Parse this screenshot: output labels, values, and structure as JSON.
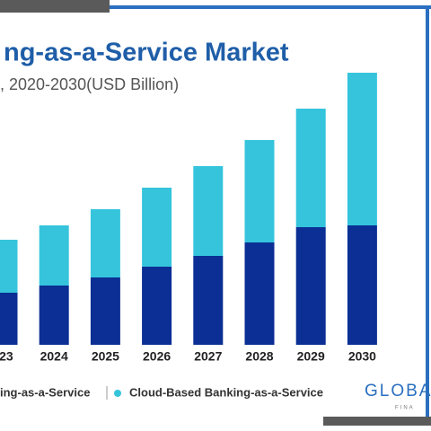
{
  "chart_data": {
    "type": "stacked-bar",
    "title": "ng-as-a-Service Market",
    "subtitle": ", 2020-2030(USD Billion)",
    "categories": [
      "023",
      "2024",
      "2025",
      "2026",
      "2027",
      "2028",
      "2029",
      "2030"
    ],
    "series": [
      {
        "name": "ing-as-a-Service",
        "color": "#0b2f94",
        "values": [
          58,
          66,
          75,
          87,
          99,
          114,
          131,
          133
        ]
      },
      {
        "name": "Cloud-Based Banking-as-a-Service",
        "color": "#35c4dc",
        "values": [
          59,
          67,
          76,
          88,
          100,
          114,
          132,
          170
        ]
      }
    ],
    "ylim": [
      0,
      300
    ],
    "logo": "GLOBA",
    "logo_sub": "FINA"
  }
}
